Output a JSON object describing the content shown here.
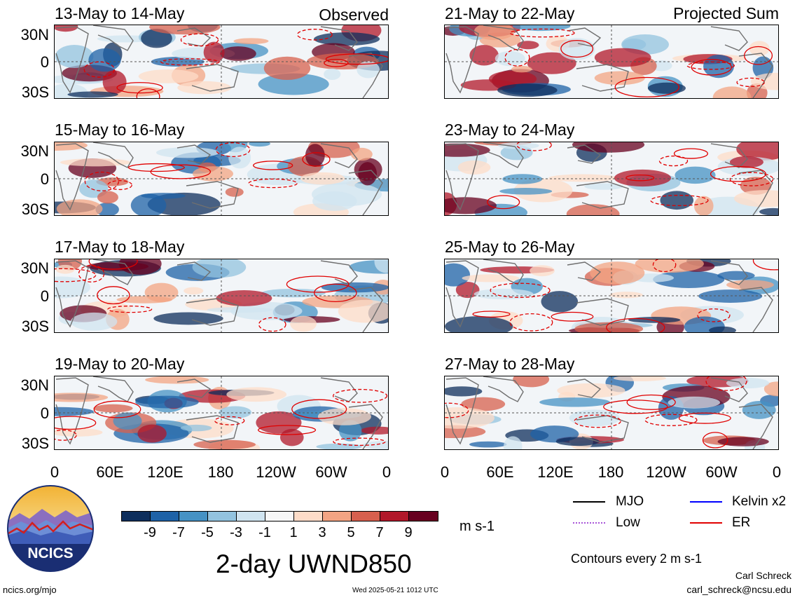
{
  "panels": [
    {
      "id": "p1",
      "title": "13-May to 14-May",
      "corner": "Observed"
    },
    {
      "id": "p2",
      "title": "15-May to 16-May",
      "corner": ""
    },
    {
      "id": "p3",
      "title": "17-May to 18-May",
      "corner": ""
    },
    {
      "id": "p4",
      "title": "19-May to 20-May",
      "corner": ""
    },
    {
      "id": "p5",
      "title": "21-May to 22-May",
      "corner": "Projected Sum"
    },
    {
      "id": "p6",
      "title": "23-May to 24-May",
      "corner": ""
    },
    {
      "id": "p7",
      "title": "25-May to 26-May",
      "corner": ""
    },
    {
      "id": "p8",
      "title": "27-May to 28-May",
      "corner": ""
    }
  ],
  "lat_labels": [
    "30N",
    "0",
    "30S"
  ],
  "lon_labels": [
    "0",
    "60E",
    "120E",
    "180",
    "120W",
    "60W",
    "0"
  ],
  "colorbar": {
    "colors": [
      "#0d2e5c",
      "#1e62a7",
      "#4692c4",
      "#93c3df",
      "#d0e4f0",
      "#f7f7f7",
      "#fddcc8",
      "#f3a483",
      "#d7604e",
      "#b1172a",
      "#67001f"
    ],
    "labels": [
      "-9",
      "-7",
      "-5",
      "-3",
      "-1",
      "1",
      "3",
      "5",
      "7",
      "9"
    ],
    "units": "m s-1"
  },
  "main_title": "2-day UWND850",
  "legend": {
    "items": [
      {
        "label": "MJO",
        "color": "#000000",
        "style": "solid"
      },
      {
        "label": "Kelvin x2",
        "color": "#0000ff",
        "style": "solid"
      },
      {
        "label": "Low",
        "color": "#a855d8",
        "style": "dotted"
      },
      {
        "label": "ER",
        "color": "#e00000",
        "style": "solid"
      }
    ],
    "note": "Contours every 2 m s-1"
  },
  "logo": {
    "text": "NCICS"
  },
  "footer": {
    "left": "ncics.org/mjo",
    "center": "Wed 2025-05-21 1012 UTC",
    "author": "Carl Schreck",
    "email": "carl_schreck@ncsu.edu"
  }
}
